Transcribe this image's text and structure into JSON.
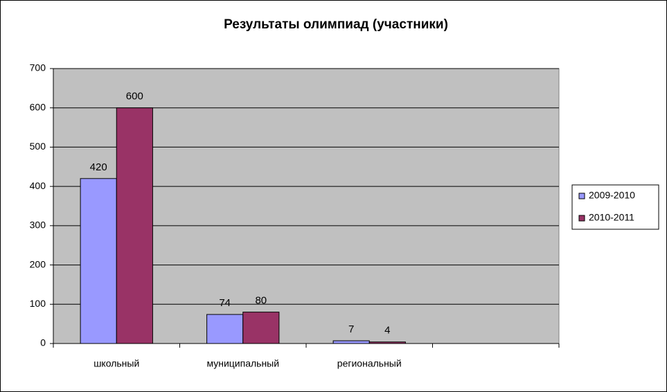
{
  "chart_data": {
    "type": "bar",
    "title": "Результаты олимпиад (участники)",
    "categories": [
      "школьный",
      "муниципальный",
      "региональный",
      null
    ],
    "series": [
      {
        "name": "2009-2010",
        "color": "#9999ff",
        "values": [
          420,
          74,
          7,
          null
        ]
      },
      {
        "name": "2010-2011",
        "color": "#993366",
        "values": [
          600,
          80,
          4,
          null
        ]
      }
    ],
    "ylim": [
      0,
      700
    ],
    "yticks": [
      0,
      100,
      200,
      300,
      400,
      500,
      600,
      700
    ],
    "grid": true,
    "legend": "right",
    "plot_background": "#c0c0c0"
  }
}
